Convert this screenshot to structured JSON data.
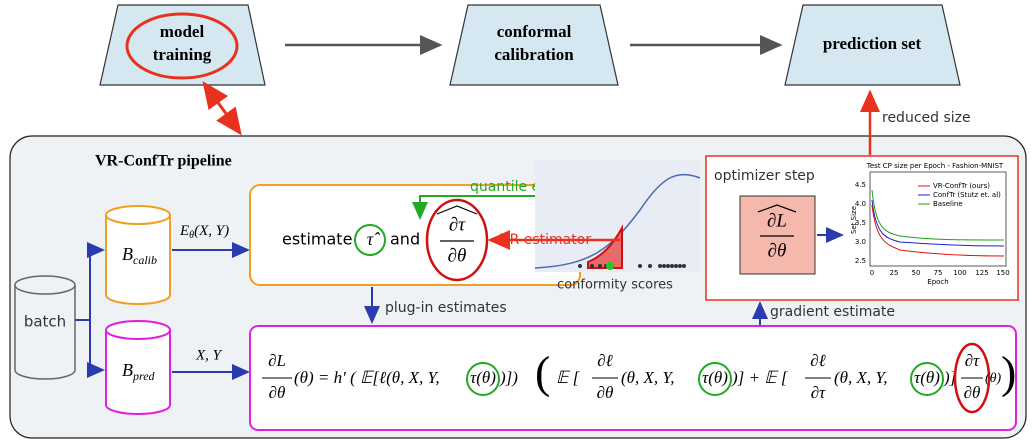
{
  "top": {
    "model_training": [
      "model",
      "training"
    ],
    "conformal_calibration": [
      "conformal",
      "calibration"
    ],
    "prediction_set": "prediction set",
    "reduced_size": "reduced size"
  },
  "pipeline": {
    "title": "VR-ConfTr pipeline",
    "batch": "batch",
    "b_calib": {
      "base": "B",
      "sub": "calib"
    },
    "b_pred": {
      "base": "B",
      "sub": "pred"
    },
    "e_theta": {
      "base": "E",
      "sub": "θ",
      "rest": "(X, Y)"
    },
    "xy": "X, Y",
    "estimate": "estimate",
    "tau_hat": "τ̂",
    "and": "and",
    "dtau_num": "∂τ",
    "dtau_den": "∂θ",
    "quantile_estimator": "quantile estimator",
    "vr_estimator": "VR estimator",
    "conformity_scores": "conformity scores",
    "plug_in": "plug-in estimates",
    "gradient_estimate": "gradient estimate",
    "optimizer_step": "optimizer step",
    "dl_num": "∂L",
    "dl_den": "∂θ"
  },
  "inset": {
    "title": "Test CP size per Epoch - Fashion-MNIST",
    "legend": [
      "VR-ConfTr (ours)",
      "ConfTr (Stutz et. al)",
      "Baseline"
    ],
    "ylabel": "Set Size",
    "xlabel": "Epoch",
    "yticks": [
      "2.5",
      "3.0",
      "3.5",
      "4.0",
      "4.5"
    ],
    "xticks": [
      "0",
      "25",
      "50",
      "75",
      "100",
      "125",
      "150"
    ]
  },
  "formula": {
    "f1_num": "∂L",
    "f1_den": "∂θ",
    "p1": "(θ) = h′ ( 𝔼[ℓ(θ, X, Y,",
    "c1": "τ(θ)",
    "p2": ")])",
    "open": "(",
    "p3": "𝔼 [",
    "f2_num": "∂ℓ",
    "f2_den": "∂θ",
    "p4": "(θ, X, Y,",
    "c2": "τ(θ)",
    "p5": ")] + 𝔼 [",
    "f3_num": "∂ℓ",
    "f3_den": "∂τ",
    "p6": "(θ, X, Y,",
    "c3": "τ(θ)",
    "p7": ")]",
    "f4_num": "∂τ",
    "f4_den": "∂θ",
    "p8": "(θ)",
    "close": ")"
  }
}
